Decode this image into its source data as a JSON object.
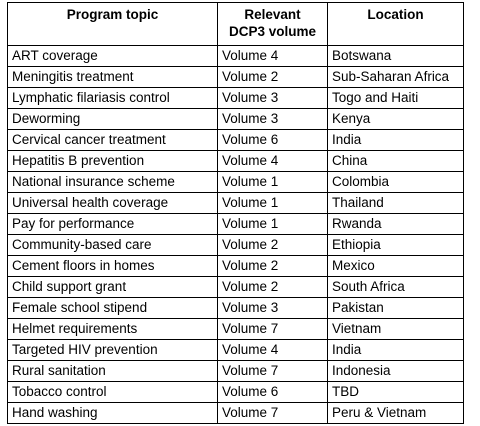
{
  "table": {
    "headers": {
      "topic": "Program topic",
      "volume_line1": "Relevant",
      "volume_line2": "DCP3 volume",
      "location": "Location"
    },
    "rows": [
      {
        "topic": "ART coverage",
        "volume": "Volume 4",
        "location": "Botswana"
      },
      {
        "topic": "Meningitis treatment",
        "volume": "Volume 2",
        "location": "Sub-Saharan Africa"
      },
      {
        "topic": "Lymphatic filariasis control",
        "volume": "Volume 3",
        "location": "Togo and Haiti"
      },
      {
        "topic": "Deworming",
        "volume": "Volume 3",
        "location": "Kenya"
      },
      {
        "topic": "Cervical cancer treatment",
        "volume": "Volume 6",
        "location": "India"
      },
      {
        "topic": "Hepatitis B prevention",
        "volume": "Volume 4",
        "location": "China"
      },
      {
        "topic": "National insurance scheme",
        "volume": "Volume 1",
        "location": "Colombia"
      },
      {
        "topic": "Universal health coverage",
        "volume": "Volume 1",
        "location": "Thailand"
      },
      {
        "topic": "Pay for performance",
        "volume": "Volume 1",
        "location": "Rwanda"
      },
      {
        "topic": "Community-based care",
        "volume": "Volume 2",
        "location": "Ethiopia"
      },
      {
        "topic": "Cement floors in homes",
        "volume": "Volume 2",
        "location": "Mexico"
      },
      {
        "topic": "Child support grant",
        "volume": "Volume 2",
        "location": "South Africa"
      },
      {
        "topic": "Female school stipend",
        "volume": "Volume 3",
        "location": "Pakistan"
      },
      {
        "topic": "Helmet requirements",
        "volume": "Volume 7",
        "location": "Vietnam"
      },
      {
        "topic": "Targeted HIV prevention",
        "volume": "Volume 4",
        "location": "India"
      },
      {
        "topic": "Rural sanitation",
        "volume": "Volume 7",
        "location": "Indonesia"
      },
      {
        "topic": "Tobacco control",
        "volume": "Volume 6",
        "location": "TBD"
      },
      {
        "topic": "Hand washing",
        "volume": "Volume 7",
        "location": "Peru & Vietnam"
      }
    ]
  }
}
